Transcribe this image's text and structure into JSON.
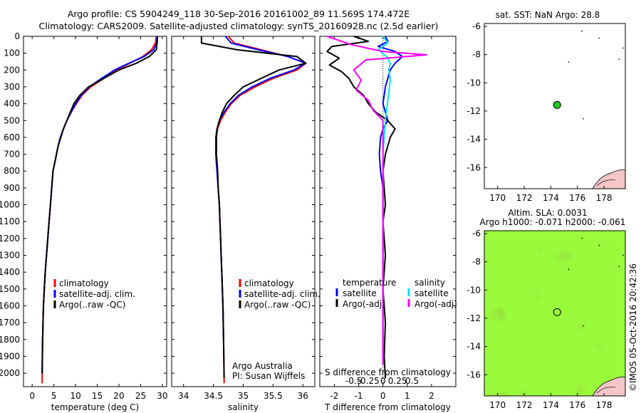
{
  "header": {
    "line1": "Argo profile: CS 5904249_118 30-Sep-2016 20161002_89 11.569S 174.472E",
    "line2": "Climatology: CARS2009. Satellite-adjusted climatology: synTS_20160928.nc (2.5d earlier)"
  },
  "colors": {
    "climatology": "#ff0000",
    "satellite": "#0000ff",
    "argo": "#000000",
    "salinity_satellite": "#00e5e5",
    "salinity_argo": "#ff00ff",
    "sst_map_bg": "#ffffff",
    "sla_map_bg": "#66dd22",
    "argo_marker": "#22cc22"
  },
  "legend": {
    "climatology": "climatology",
    "satellite": "satellite-adj. clim.",
    "argo": "Argo(..raw -QC)"
  },
  "diff_legend": {
    "temperature_title": "temperature",
    "salinity_title": "salinity",
    "satellite": "satellite",
    "argo": "Argo(-adj)"
  },
  "credits": {
    "org": "Argo Australia",
    "pi": "PI: Susan Wijffels"
  },
  "map_sst": {
    "title": "sat. SST: NaN Argo: 28.8"
  },
  "map_sla": {
    "title1": "Altim. SLA: 0.0031",
    "title2": "Argo h1000: -0.071 h2000: -0.061"
  },
  "stamp": "©IMOS 05-Oct-2016 20:42:36",
  "chart_data": [
    {
      "type": "line",
      "id": "temperature",
      "xlabel": "temperature (deg C)",
      "ylabel": "",
      "xlim": [
        -2,
        31
      ],
      "ylim": [
        2080,
        0
      ],
      "xticks": [
        0,
        5,
        10,
        15,
        20,
        25,
        30
      ],
      "yticks": [
        0,
        100,
        200,
        300,
        400,
        500,
        600,
        700,
        800,
        900,
        1000,
        1100,
        1200,
        1300,
        1400,
        1500,
        1600,
        1700,
        1800,
        1900,
        2000
      ],
      "series": [
        {
          "name": "climatology",
          "color": "#ff0000",
          "x": [
            28.6,
            28.4,
            27.5,
            25.5,
            22.5,
            19.5,
            16.5,
            13.5,
            11.5,
            10.2,
            9.0,
            8.0,
            7.2,
            6.5,
            6.0,
            5.6,
            5.2,
            4.8,
            4.5,
            4.2,
            3.9,
            3.6,
            3.3,
            3.0,
            2.8,
            2.6,
            2.4,
            2.3,
            2.3
          ],
          "y": [
            0,
            40,
            80,
            120,
            160,
            200,
            250,
            300,
            350,
            400,
            450,
            500,
            550,
            600,
            650,
            700,
            750,
            800,
            900,
            1000,
            1100,
            1200,
            1300,
            1400,
            1500,
            1600,
            1800,
            2000,
            2060
          ]
        },
        {
          "name": "satellite-adj. clim.",
          "color": "#0000ff",
          "x": [
            28.8,
            28.7,
            28.0,
            25.8,
            22.3,
            19.0,
            16.0,
            13.2,
            11.3,
            10.0,
            9.0,
            8.0,
            7.2,
            6.5,
            6.0,
            5.6,
            5.2,
            4.8,
            4.5,
            4.2,
            3.9,
            3.6,
            3.3,
            3.0,
            2.8,
            2.6,
            2.4,
            2.3
          ],
          "y": [
            0,
            40,
            80,
            120,
            160,
            200,
            250,
            300,
            350,
            400,
            450,
            500,
            550,
            600,
            650,
            700,
            750,
            800,
            900,
            1000,
            1100,
            1200,
            1300,
            1400,
            1500,
            1600,
            1800,
            2000
          ]
        },
        {
          "name": "Argo(..raw -QC)",
          "color": "#000000",
          "x": [
            28.9,
            28.8,
            28.6,
            27.0,
            24.0,
            20.0,
            16.5,
            13.0,
            11.0,
            9.6,
            8.8,
            8.0,
            7.2,
            6.6,
            6.0,
            5.6,
            5.2,
            4.8,
            4.5,
            4.2,
            3.9,
            3.6,
            3.3,
            3.0,
            2.8,
            2.6,
            2.4,
            2.3
          ],
          "y": [
            0,
            40,
            80,
            120,
            160,
            200,
            250,
            300,
            350,
            400,
            450,
            500,
            550,
            600,
            650,
            700,
            750,
            800,
            900,
            1000,
            1100,
            1200,
            1300,
            1400,
            1500,
            1600,
            1800,
            2000
          ]
        }
      ]
    },
    {
      "type": "line",
      "id": "salinity",
      "xlabel": "salinity",
      "ylabel": "",
      "xlim": [
        33.8,
        36.2
      ],
      "ylim": [
        2080,
        0
      ],
      "xticks": [
        34,
        34.5,
        35,
        35.5,
        36
      ],
      "series": [
        {
          "name": "climatology",
          "color": "#ff0000",
          "x": [
            34.75,
            34.85,
            35.3,
            35.75,
            36.05,
            35.9,
            35.5,
            35.2,
            34.95,
            34.8,
            34.7,
            34.62,
            34.57,
            34.55,
            34.55,
            34.55,
            34.56,
            34.57,
            34.58,
            34.6,
            34.61,
            34.62,
            34.63,
            34.64,
            34.65,
            34.66,
            34.67,
            34.68
          ],
          "y": [
            0,
            40,
            80,
            120,
            160,
            200,
            250,
            300,
            350,
            400,
            450,
            500,
            550,
            600,
            650,
            700,
            750,
            800,
            900,
            1000,
            1100,
            1200,
            1300,
            1400,
            1500,
            1600,
            1800,
            2060
          ]
        },
        {
          "name": "satellite-adj. clim.",
          "color": "#0000ff",
          "x": [
            34.7,
            34.8,
            35.25,
            35.75,
            36.05,
            35.85,
            35.45,
            35.15,
            34.92,
            34.78,
            34.68,
            34.6,
            34.56,
            34.54,
            34.54,
            34.54,
            34.55,
            34.56,
            34.58,
            34.6,
            34.61,
            34.62,
            34.63,
            34.64,
            34.65,
            34.66,
            34.67
          ],
          "y": [
            0,
            40,
            80,
            120,
            160,
            200,
            250,
            300,
            350,
            400,
            450,
            500,
            550,
            600,
            650,
            700,
            750,
            800,
            900,
            1000,
            1100,
            1200,
            1300,
            1400,
            1500,
            1600,
            1800
          ]
        },
        {
          "name": "Argo(..raw -QC)",
          "color": "#000000",
          "x": [
            34.3,
            34.3,
            34.9,
            35.9,
            36.05,
            35.6,
            35.3,
            35.0,
            34.85,
            34.72,
            34.65,
            34.6,
            34.56,
            34.55,
            34.55,
            34.55,
            34.56,
            34.57,
            34.58,
            34.6,
            34.61,
            34.62,
            34.63,
            34.64,
            34.65,
            34.66,
            34.67,
            34.68
          ],
          "y": [
            0,
            40,
            80,
            120,
            160,
            200,
            250,
            300,
            350,
            400,
            450,
            500,
            550,
            600,
            650,
            700,
            750,
            800,
            900,
            1000,
            1100,
            1200,
            1300,
            1400,
            1500,
            1600,
            1800,
            2030
          ]
        }
      ]
    },
    {
      "type": "line",
      "id": "difference",
      "xlabel": "T difference from climatology",
      "xlabel_top": "S difference from climatology",
      "xlim": [
        -2.6,
        3.0
      ],
      "ylim": [
        2080,
        0
      ],
      "xticks": [
        -2,
        -1,
        0,
        1,
        2
      ],
      "xticks_top": [
        -0.5,
        -0.25,
        0,
        0.25,
        0.5
      ],
      "xticklabels_top": [
        "-0.5",
        "-0.25",
        "0",
        "0.25",
        "0.5"
      ],
      "series": [
        {
          "name": "temperature satellite",
          "color": "#0000ff",
          "x": [
            0.1,
            0.2,
            -0.2,
            0.5,
            0.8,
            0.5,
            0.3,
            0.2,
            0.1,
            0.05,
            0.0,
            0.1,
            0.2,
            0.0,
            -0.1,
            -0.15,
            -0.1,
            0.0,
            0.0,
            0.0,
            0.0,
            0.0,
            0.0,
            0.0,
            0.0,
            0.0,
            0.0
          ],
          "y": [
            0,
            30,
            60,
            90,
            120,
            160,
            200,
            250,
            300,
            350,
            400,
            450,
            500,
            550,
            600,
            700,
            800,
            900,
            1000,
            1200,
            1300,
            1400,
            1500,
            1600,
            1800,
            1900,
            1950
          ]
        },
        {
          "name": "temperature Argo(-adj)",
          "color": "#000000",
          "x": [
            -1.2,
            -0.6,
            -2.1,
            -2.3,
            -1.8,
            -2.2,
            -1.7,
            -1.4,
            -1.2,
            -0.8,
            -0.6,
            -0.3,
            0.2,
            0.5,
            0.3,
            0.1,
            0.0,
            0.05,
            0.1,
            0.0,
            0.05,
            0.1,
            0.05,
            0.0,
            0.1,
            0.05,
            0.1
          ],
          "y": [
            0,
            30,
            60,
            90,
            130,
            170,
            210,
            250,
            300,
            350,
            400,
            450,
            500,
            550,
            600,
            700,
            800,
            900,
            1000,
            1100,
            1200,
            1300,
            1400,
            1500,
            1700,
            1900,
            2030
          ]
        },
        {
          "name": "salinity satellite",
          "color": "#00e5e5",
          "x": [
            0.0,
            0.2,
            -0.2,
            0.15,
            0.3,
            0.25,
            0.3,
            0.25,
            0.2,
            0.15,
            0.1,
            0.05,
            0.0,
            0.0,
            0.0,
            0.0,
            0.0,
            0.0,
            0.0,
            0.0,
            0.0
          ],
          "y": [
            0,
            40,
            80,
            120,
            160,
            200,
            260,
            320,
            380,
            440,
            500,
            600,
            700,
            800,
            1000,
            1200,
            1400,
            1600,
            1800,
            1900,
            1950
          ]
        },
        {
          "name": "salinity Argo(-adj)",
          "color": "#ff00ff",
          "x": [
            -2.3,
            -1.3,
            0.0,
            1.8,
            -0.7,
            -1.2,
            -0.9,
            -1.1,
            -0.6,
            -0.4,
            0.0,
            0.0,
            0.0,
            0.0
          ],
          "y": [
            0,
            50,
            90,
            110,
            140,
            200,
            260,
            320,
            380,
            440,
            500,
            1500,
            1800,
            1950
          ]
        }
      ]
    },
    {
      "type": "scatter",
      "id": "sst_map",
      "title": "sat. SST: NaN Argo: 28.8",
      "xlim": [
        169,
        179.6
      ],
      "ylim": [
        -17.5,
        -5.8
      ],
      "xticks": [
        170,
        172,
        174,
        176,
        178
      ],
      "yticks": [
        -6,
        -8,
        -10,
        -12,
        -14,
        -16
      ],
      "points": [
        {
          "x": 174.472,
          "y": -11.569
        }
      ]
    },
    {
      "type": "heatmap",
      "id": "sla_map",
      "title": "Altim. SLA: 0.0031",
      "xlim": [
        169,
        179.6
      ],
      "ylim": [
        -17.5,
        -5.8
      ],
      "xticks": [
        170,
        172,
        174,
        176,
        178
      ],
      "yticks": [
        -6,
        -8,
        -10,
        -12,
        -14,
        -16
      ],
      "points": [
        {
          "x": 174.472,
          "y": -11.569
        }
      ]
    }
  ]
}
